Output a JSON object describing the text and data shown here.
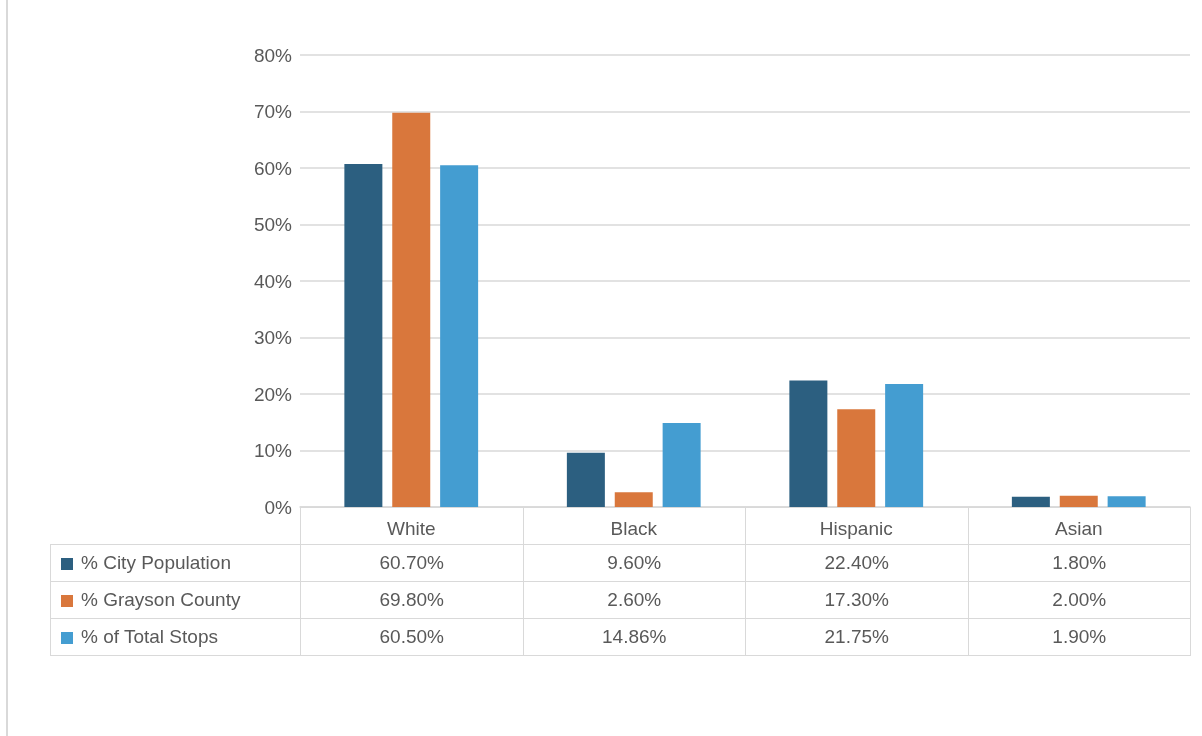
{
  "chart_data": {
    "type": "bar",
    "categories": [
      "White",
      "Black",
      "Hispanic",
      "Asian"
    ],
    "series": [
      {
        "name": "% City Population",
        "color": "#2c5f80",
        "values": [
          60.7,
          9.6,
          22.4,
          1.8
        ],
        "value_labels": [
          "60.70%",
          "9.60%",
          "22.40%",
          "1.80%"
        ]
      },
      {
        "name": "% Grayson County",
        "color": "#d9773c",
        "values": [
          69.8,
          2.6,
          17.3,
          2.0
        ],
        "value_labels": [
          "69.80%",
          "2.60%",
          "17.30%",
          "2.00%"
        ]
      },
      {
        "name": "% of Total Stops",
        "color": "#449dd1",
        "values": [
          60.5,
          14.86,
          21.75,
          1.9
        ],
        "value_labels": [
          "60.50%",
          "14.86%",
          "21.75%",
          "1.90%"
        ]
      }
    ],
    "ylim": [
      0,
      80
    ],
    "yticks": [
      {
        "value": 0,
        "label": "0%"
      },
      {
        "value": 10,
        "label": "10%"
      },
      {
        "value": 20,
        "label": "20%"
      },
      {
        "value": 30,
        "label": "30%"
      },
      {
        "value": 40,
        "label": "40%"
      },
      {
        "value": 50,
        "label": "50%"
      },
      {
        "value": 60,
        "label": "60%"
      },
      {
        "value": 70,
        "label": "70%"
      },
      {
        "value": 80,
        "label": "80%"
      }
    ],
    "grid": "y",
    "legend": "bottom left"
  }
}
